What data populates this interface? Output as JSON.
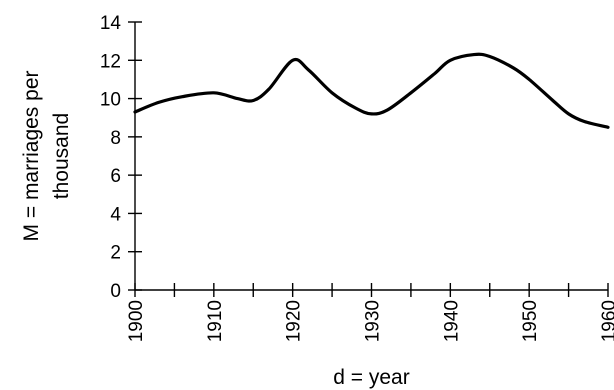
{
  "chart_data": {
    "type": "line",
    "title": "",
    "xlabel": "d = year",
    "ylabel_lines": [
      "M = marriages per",
      "thousand"
    ],
    "xlim": [
      1900,
      1960
    ],
    "ylim": [
      0,
      14
    ],
    "x_major_ticks": [
      1900,
      1910,
      1920,
      1930,
      1940,
      1950,
      1960
    ],
    "x_minor_ticks": [
      1905,
      1915,
      1925,
      1935,
      1945,
      1955
    ],
    "y_ticks": [
      0,
      2,
      4,
      6,
      8,
      10,
      12,
      14
    ],
    "grid": false,
    "legend": "none",
    "series_color": "#000000",
    "series": [
      {
        "x": [
          1900,
          1903,
          1906,
          1910,
          1913,
          1915,
          1917,
          1920,
          1922,
          1925,
          1928,
          1930,
          1932,
          1935,
          1938,
          1940,
          1943,
          1945,
          1948,
          1950,
          1953,
          1955,
          1957,
          1960
        ],
        "y": [
          9.3,
          9.8,
          10.1,
          10.3,
          10.0,
          9.9,
          10.5,
          12.0,
          11.5,
          10.3,
          9.5,
          9.2,
          9.4,
          10.3,
          11.3,
          12.0,
          12.3,
          12.2,
          11.6,
          11.0,
          9.9,
          9.2,
          8.8,
          8.5
        ]
      }
    ]
  }
}
